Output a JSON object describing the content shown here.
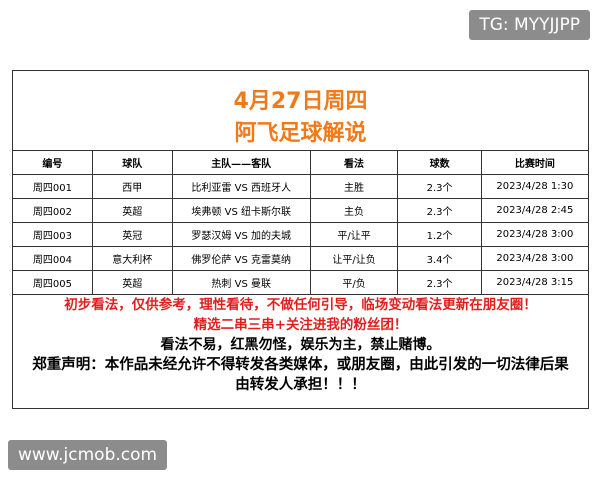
{
  "watermark_top": "TG: MYYJJPP",
  "header": {
    "date": "4月27日周四",
    "title": "阿飞足球解说"
  },
  "table": {
    "columns": [
      "编号",
      "球队",
      "主队——客队",
      "看法",
      "球数",
      "比赛时间"
    ],
    "rows": [
      [
        "周四001",
        "西甲",
        "比利亚雷 VS 西班牙人",
        "主胜",
        "2.3个",
        "2023/4/28 1:30"
      ],
      [
        "周四002",
        "英超",
        "埃弗顿 VS 纽卡斯尔联",
        "主负",
        "2.3个",
        "2023/4/28 2:45"
      ],
      [
        "周四003",
        "英冠",
        "罗瑟汉姆 VS 加的夫城",
        "平/让平",
        "1.2个",
        "2023/4/28 3:00"
      ],
      [
        "周四004",
        "意大利杯",
        "佛罗伦萨 VS 克雷莫纳",
        "让平/让负",
        "3.4个",
        "2023/4/28 3:00"
      ],
      [
        "周四005",
        "英超",
        "热刺 VS 曼联",
        "平/负",
        "2.3个",
        "2023/4/28 3:15"
      ]
    ]
  },
  "notes": [
    {
      "text": "初步看法，仅供参考，理性看待，不做任何引导，临场变动看法更新在朋友圈！",
      "color": "#e02020"
    },
    {
      "text": "精选二串三串+关注进我的粉丝团！",
      "color": "#e02020"
    },
    {
      "text": "看法不易，红黑勿怪，娱乐为主，禁止赌博。",
      "color": "#000000"
    },
    {
      "text": "郑重声明：本作品未经允许不得转发各类媒体，或朋友圈，由此引发的一切法律后果",
      "color": "#000000"
    },
    {
      "text": "由转发人承担！！！",
      "color": "#000000"
    }
  ],
  "watermark_bottom": "www.jcmob.com"
}
